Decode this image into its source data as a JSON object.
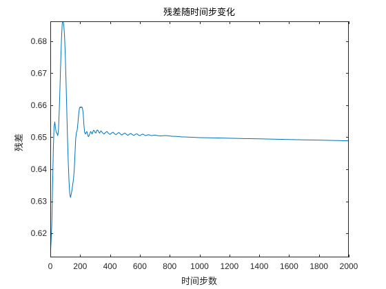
{
  "chart_data": {
    "type": "line",
    "title": "残差随时间步变化",
    "xlabel": "时间步数",
    "ylabel": "残差",
    "xlim": [
      0,
      2000
    ],
    "ylim": [
      0.6125,
      0.6862
    ],
    "xticks": [
      0,
      200,
      400,
      600,
      800,
      1000,
      1200,
      1400,
      1600,
      1800,
      2000
    ],
    "yticks": [
      0.62,
      0.63,
      0.64,
      0.65,
      0.66,
      0.67,
      0.68
    ],
    "grid": false,
    "legend": "none",
    "line_color": "#0072BD",
    "series": [
      {
        "x": [
          0,
          5,
          10,
          15,
          20,
          25,
          30,
          35,
          40,
          45,
          50,
          55,
          60,
          65,
          70,
          75,
          80,
          85,
          90,
          95,
          100,
          105,
          110,
          115,
          120,
          125,
          130,
          135,
          140,
          145,
          150,
          155,
          160,
          165,
          170,
          175,
          180,
          185,
          190,
          195,
          200,
          205,
          210,
          215,
          220,
          225,
          230,
          235,
          240,
          245,
          250,
          255,
          260,
          265,
          270,
          275,
          280,
          285,
          290,
          295,
          300,
          305,
          310,
          315,
          320,
          325,
          330,
          335,
          340,
          350,
          360,
          370,
          380,
          390,
          400,
          410,
          420,
          430,
          440,
          450,
          460,
          470,
          480,
          490,
          500,
          510,
          520,
          530,
          540,
          550,
          560,
          570,
          580,
          590,
          600,
          610,
          620,
          630,
          640,
          650,
          660,
          670,
          680,
          690,
          700,
          720,
          740,
          760,
          780,
          800,
          820,
          840,
          860,
          880,
          900,
          950,
          1000,
          1100,
          1200,
          1300,
          1400,
          1500,
          1600,
          1700,
          1800,
          1900,
          2000
        ],
        "values": [
          0.6125,
          0.6175,
          0.623,
          0.6345,
          0.646,
          0.6532,
          0.6548,
          0.6528,
          0.6515,
          0.6512,
          0.6505,
          0.6525,
          0.6585,
          0.666,
          0.674,
          0.681,
          0.6855,
          0.6862,
          0.6852,
          0.682,
          0.676,
          0.668,
          0.659,
          0.65,
          0.6425,
          0.6365,
          0.6325,
          0.6312,
          0.6322,
          0.6335,
          0.6352,
          0.6368,
          0.6395,
          0.6445,
          0.6495,
          0.6515,
          0.6522,
          0.6545,
          0.6572,
          0.659,
          0.6595,
          0.6592,
          0.6595,
          0.6592,
          0.6575,
          0.654,
          0.6515,
          0.651,
          0.6515,
          0.6518,
          0.6508,
          0.6502,
          0.6505,
          0.6512,
          0.6518,
          0.6515,
          0.651,
          0.6517,
          0.6522,
          0.652,
          0.6515,
          0.6513,
          0.652,
          0.6523,
          0.6521,
          0.6516,
          0.6513,
          0.6517,
          0.652,
          0.6514,
          0.651,
          0.6515,
          0.6518,
          0.6512,
          0.6509,
          0.6513,
          0.6516,
          0.6511,
          0.6508,
          0.6512,
          0.6515,
          0.651,
          0.6507,
          0.6511,
          0.6513,
          0.6509,
          0.6506,
          0.651,
          0.6512,
          0.6508,
          0.6506,
          0.6509,
          0.6511,
          0.6507,
          0.6505,
          0.6508,
          0.651,
          0.6507,
          0.6505,
          0.6507,
          0.6508,
          0.6506,
          0.6505,
          0.6506,
          0.6507,
          0.6505,
          0.6504,
          0.6505,
          0.6505,
          0.6504,
          0.6503,
          0.6503,
          0.6502,
          0.6501,
          0.6501,
          0.65,
          0.6499,
          0.6498,
          0.6497,
          0.6496,
          0.6495,
          0.6494,
          0.6493,
          0.6492,
          0.6491,
          0.649,
          0.6489
        ]
      }
    ]
  }
}
